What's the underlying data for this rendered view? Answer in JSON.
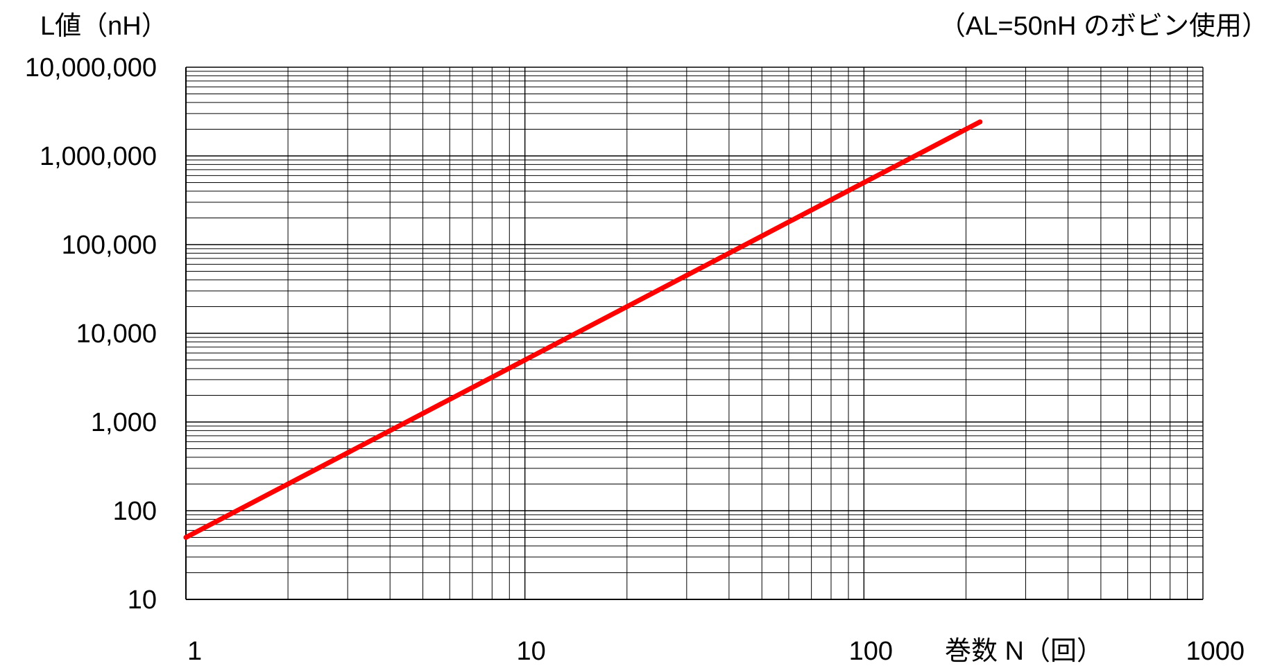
{
  "chart_data": {
    "type": "line",
    "ylabel": "L値（nH）",
    "xlabel": "巻数 N（回）",
    "annotation": "（AL=50nH のボビン使用）",
    "x_scale": "log",
    "y_scale": "log",
    "xlim": [
      1,
      1000
    ],
    "ylim": [
      10,
      10000000
    ],
    "grid": true,
    "legend": "none",
    "x_tick_labels": [
      "1",
      "10",
      "100",
      "1000"
    ],
    "y_tick_labels": [
      "10",
      "100",
      "1,000",
      "10,000",
      "100,000",
      "1,000,000",
      "10,000,000"
    ],
    "x_tick_values": [
      1,
      10,
      100,
      1000
    ],
    "y_tick_values": [
      10,
      100,
      1000,
      10000,
      100000,
      1000000,
      10000000
    ],
    "series": [
      {
        "color": "#ff0000",
        "x": [
          1,
          2,
          3,
          5,
          10,
          20,
          30,
          50,
          100,
          150,
          200,
          220
        ],
        "y": [
          50,
          200,
          450,
          1250,
          5000,
          20000,
          45000,
          125000,
          500000,
          1125000,
          2000000,
          2420000
        ]
      }
    ]
  }
}
